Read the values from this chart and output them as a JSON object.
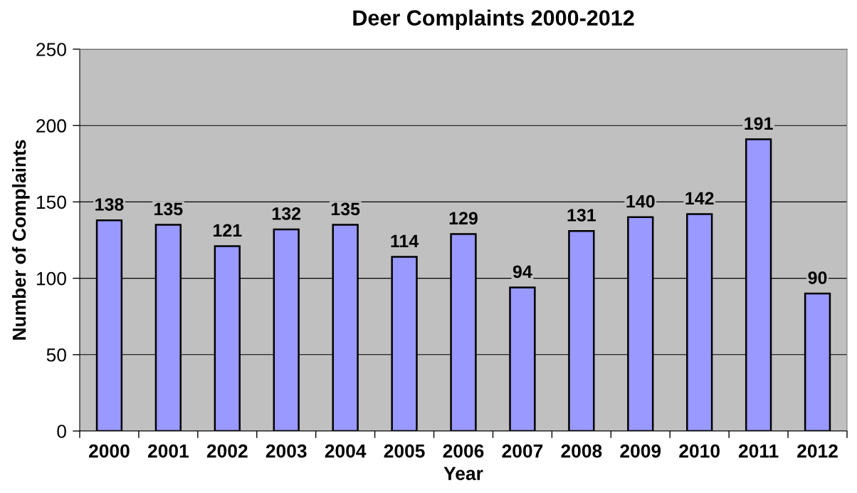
{
  "chart_data": {
    "type": "bar",
    "title": "Deer Complaints 2000-2012",
    "xlabel": "Year",
    "ylabel": "Number of Complaints",
    "categories": [
      "2000",
      "2001",
      "2002",
      "2003",
      "2004",
      "2005",
      "2006",
      "2007",
      "2008",
      "2009",
      "2010",
      "2011",
      "2012"
    ],
    "values": [
      138,
      135,
      121,
      132,
      135,
      114,
      129,
      94,
      131,
      140,
      142,
      191,
      90
    ],
    "color": "#9999ff",
    "ylim": [
      0,
      250
    ],
    "yticks": [
      0,
      50,
      100,
      150,
      200,
      250
    ],
    "grid": "y",
    "data_labels": true,
    "legend": false
  }
}
